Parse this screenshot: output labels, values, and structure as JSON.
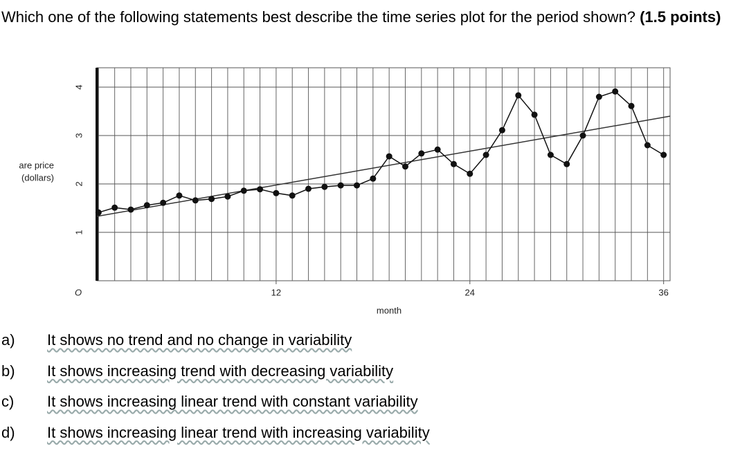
{
  "question": {
    "text": "Which one of the following statements best describe the time series plot for the period shown?",
    "points": "(1.5 points)"
  },
  "chart_data": {
    "type": "line",
    "y_label_lines": [
      "are price",
      "(dollars)"
    ],
    "x_label": "month",
    "x": [
      1,
      2,
      3,
      4,
      5,
      6,
      7,
      8,
      9,
      10,
      11,
      12,
      13,
      14,
      15,
      16,
      17,
      18,
      19,
      20,
      21,
      22,
      23,
      24,
      25,
      26,
      27,
      28,
      29,
      30,
      31,
      32,
      33,
      34,
      35,
      36
    ],
    "series": [
      {
        "color": "#111111",
        "values": [
          1.41,
          1.51,
          1.47,
          1.56,
          1.61,
          1.76,
          1.66,
          1.69,
          1.74,
          1.86,
          1.89,
          1.81,
          1.76,
          1.9,
          1.94,
          1.97,
          1.97,
          2.11,
          2.57,
          2.36,
          2.63,
          2.71,
          2.41,
          2.21,
          2.6,
          3.11,
          3.83,
          3.43,
          2.6,
          2.41,
          3.0,
          3.8,
          3.91,
          3.61,
          2.8,
          2.6
        ]
      }
    ],
    "trend": {
      "x": [
        0.9,
        36.4
      ],
      "values": [
        1.33,
        3.4
      ],
      "color": "#333333"
    },
    "xlim": [
      0.9,
      36.4
    ],
    "ylim": [
      0,
      4.4
    ],
    "xticks": [
      {
        "value": 0,
        "label": "O"
      },
      12,
      24,
      36
    ],
    "yticks": [
      1,
      2,
      3,
      4
    ],
    "grid": true
  },
  "options": [
    {
      "letter": "a)",
      "text": "It shows no trend and no change in variability"
    },
    {
      "letter": "b)",
      "text": "It shows increasing trend with decreasing variability"
    },
    {
      "letter": "c)",
      "text": "It shows increasing linear trend with constant variability"
    },
    {
      "letter": "d)",
      "text": "It shows increasing linear trend with increasing variability"
    }
  ]
}
